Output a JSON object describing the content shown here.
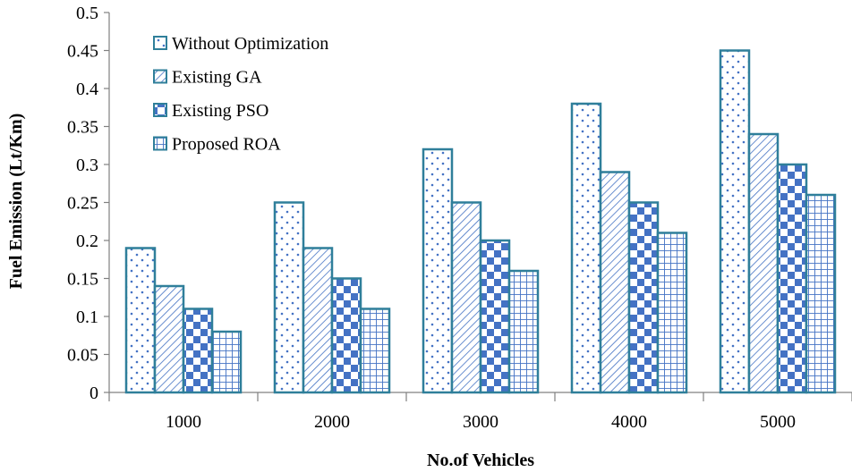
{
  "chart_data": {
    "type": "bar",
    "title": "",
    "xlabel": "No.of Vehicles",
    "ylabel": "Fuel Emission (Lt/Km)",
    "categories": [
      "1000",
      "2000",
      "3000",
      "4000",
      "5000"
    ],
    "ylim": [
      0,
      0.5
    ],
    "yticks": [
      "0",
      "0.05",
      "0.1",
      "0.15",
      "0.2",
      "0.25",
      "0.3",
      "0.35",
      "0.4",
      "0.45",
      "0.5"
    ],
    "grid": false,
    "legend_position": "top-left",
    "series": [
      {
        "name": "Without Optimization",
        "values": [
          0.19,
          0.25,
          0.32,
          0.38,
          0.45
        ],
        "pattern": "dots"
      },
      {
        "name": "Existing GA",
        "values": [
          0.14,
          0.19,
          0.25,
          0.29,
          0.34
        ],
        "pattern": "diagonal"
      },
      {
        "name": "Existing PSO",
        "values": [
          0.11,
          0.15,
          0.2,
          0.25,
          0.3
        ],
        "pattern": "checker"
      },
      {
        "name": "Proposed ROA",
        "values": [
          0.08,
          0.11,
          0.16,
          0.21,
          0.26
        ],
        "pattern": "grid"
      }
    ],
    "colors": {
      "bar_border": "#2f7f9a",
      "pattern": "#4472c4",
      "axis": "#808080"
    }
  }
}
